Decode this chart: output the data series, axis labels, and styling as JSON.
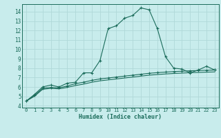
{
  "title": "",
  "xlabel": "Humidex (Indice chaleur)",
  "ylabel": "",
  "background_color": "#c8ecec",
  "grid_color": "#b0d8d8",
  "line_color": "#1a6b5a",
  "xlim": [
    -0.5,
    23.5
  ],
  "ylim": [
    3.8,
    14.8
  ],
  "yticks": [
    4,
    5,
    6,
    7,
    8,
    9,
    10,
    11,
    12,
    13,
    14
  ],
  "xticks": [
    0,
    1,
    2,
    3,
    4,
    5,
    6,
    7,
    8,
    9,
    10,
    11,
    12,
    13,
    14,
    15,
    16,
    17,
    18,
    19,
    20,
    21,
    22,
    23
  ],
  "series1_x": [
    0,
    1,
    2,
    3,
    4,
    5,
    6,
    7,
    8,
    9,
    10,
    11,
    12,
    13,
    14,
    15,
    16,
    17,
    18,
    19,
    20,
    21,
    22,
    23
  ],
  "series1_y": [
    4.5,
    5.2,
    6.0,
    6.2,
    6.0,
    6.4,
    6.5,
    7.5,
    7.5,
    8.8,
    12.2,
    12.5,
    13.3,
    13.6,
    14.4,
    14.2,
    12.2,
    9.2,
    8.0,
    7.9,
    7.5,
    7.8,
    8.2,
    7.8
  ],
  "series2_x": [
    0,
    1,
    2,
    3,
    4,
    5,
    6,
    7,
    8,
    9,
    10,
    11,
    12,
    13,
    14,
    15,
    16,
    17,
    18,
    19,
    20,
    21,
    22,
    23
  ],
  "series2_y": [
    4.5,
    5.1,
    5.85,
    5.95,
    5.9,
    6.1,
    6.35,
    6.5,
    6.7,
    6.85,
    6.95,
    7.05,
    7.15,
    7.25,
    7.35,
    7.45,
    7.52,
    7.58,
    7.63,
    7.67,
    7.72,
    7.74,
    7.77,
    7.8
  ],
  "series3_x": [
    0,
    1,
    2,
    3,
    4,
    5,
    6,
    7,
    8,
    9,
    10,
    11,
    12,
    13,
    14,
    15,
    16,
    17,
    18,
    19,
    20,
    21,
    22,
    23
  ],
  "series3_y": [
    4.5,
    5.0,
    5.75,
    5.85,
    5.8,
    5.95,
    6.15,
    6.3,
    6.5,
    6.65,
    6.75,
    6.85,
    6.95,
    7.05,
    7.15,
    7.25,
    7.32,
    7.38,
    7.43,
    7.47,
    7.52,
    7.54,
    7.57,
    7.6
  ]
}
